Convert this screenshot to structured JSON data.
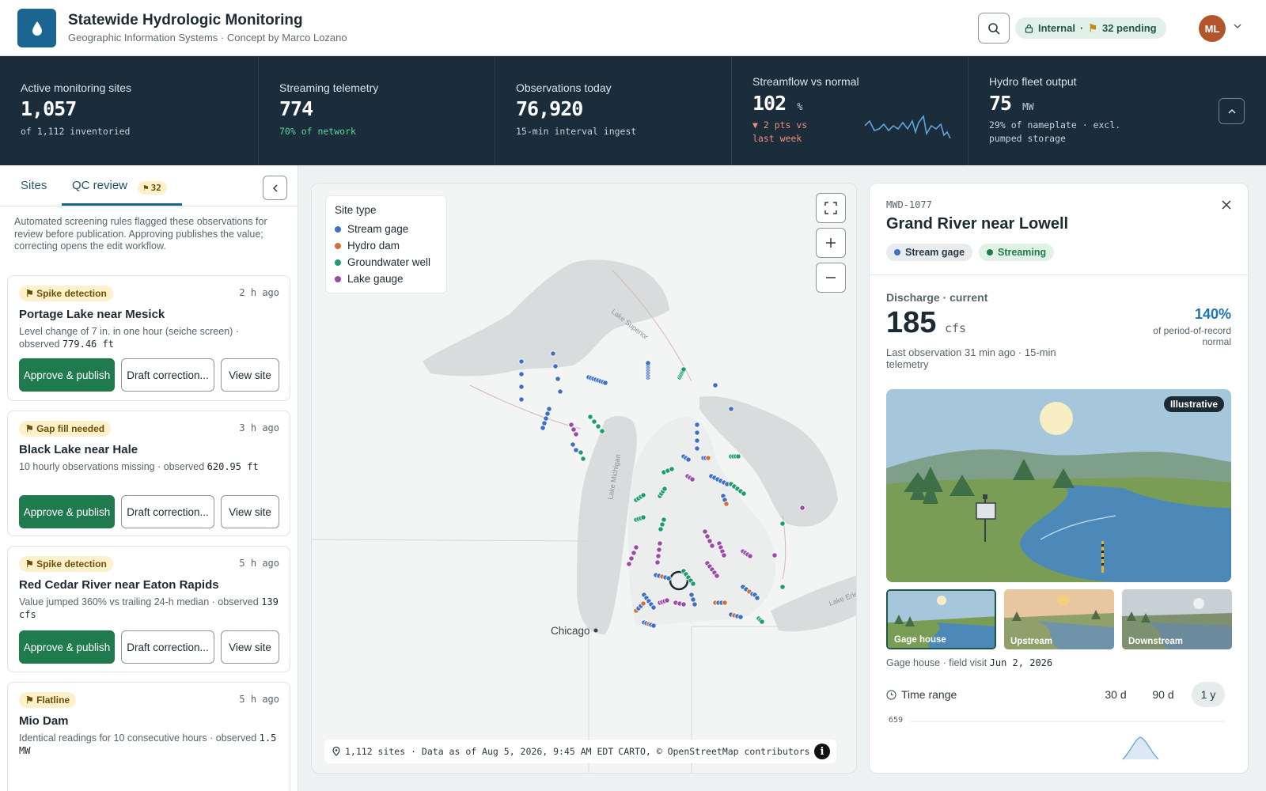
{
  "header": {
    "title": "Statewide Hydrologic Monitoring",
    "subtitle": "Geographic Information Systems · Concept by Marco Lozano",
    "status_env": "Internal",
    "status_pending": "32 pending",
    "avatar_initials": "ML"
  },
  "kpis": {
    "active": {
      "label": "Active monitoring sites",
      "value": "1,057",
      "note": "of 1,112 inventoried"
    },
    "streaming": {
      "label": "Streaming telemetry",
      "value": "774",
      "note": "70% of network"
    },
    "observations": {
      "label": "Observations today",
      "value": "76,920",
      "note": "15-min interval ingest"
    },
    "streamflow": {
      "label": "Streamflow vs normal",
      "value": "102",
      "unit": "%",
      "note1": "▼ 2 pts vs",
      "note2": "last week"
    },
    "hydro": {
      "label": "Hydro fleet output",
      "value": "75",
      "unit": "MW",
      "note1": "29% of nameplate · excl.",
      "note2": "pumped storage"
    }
  },
  "left": {
    "tab_sites": "Sites",
    "tab_qc": "QC review",
    "qc_count": "32",
    "intro": "Automated screening rules flagged these observations for review before publication. Approving publishes the value; correcting opens the edit workflow.",
    "approve_label": "Approve & publish",
    "draft_label": "Draft correction...",
    "view_label": "View site",
    "cards": [
      {
        "flag": "Spike detection",
        "time": "2 h ago",
        "title": "Portage Lake near Mesick",
        "desc": "Level change of 7 in. in one hour (seiche screen) · observed",
        "value": "779.46 ft"
      },
      {
        "flag": "Gap fill needed",
        "time": "3 h ago",
        "title": "Black Lake near Hale",
        "desc": "10 hourly observations missing · observed",
        "value": "620.95 ft"
      },
      {
        "flag": "Spike detection",
        "time": "5 h ago",
        "title": "Red Cedar River near Eaton Rapids",
        "desc": "Value jumped 360% vs trailing 24-h median · observed",
        "value": "139 cfs"
      },
      {
        "flag": "Flatline",
        "time": "5 h ago",
        "title": "Mio Dam",
        "desc": "Identical readings for 10 consecutive hours · observed",
        "value": "1.5 MW"
      }
    ]
  },
  "map": {
    "legend_title": "Site type",
    "legend": [
      {
        "label": "Stream gage",
        "color": "#3d6fc4"
      },
      {
        "label": "Hydro dam",
        "color": "#d2703a"
      },
      {
        "label": "Groundwater well",
        "color": "#1f9b72"
      },
      {
        "label": "Lake gauge",
        "color": "#9c4aa8"
      }
    ],
    "lake_superior": "Lake Superior",
    "lake_michigan": "Lake Michigan",
    "lake_erie": "Lake Erie",
    "city": "Chicago",
    "footer": "1,112 sites · Data as of Aug 5, 2026, 9:45 AM EDT",
    "attribution": "CARTO, © OpenStreetMap contributors"
  },
  "detail": {
    "site_id": "MWD-1077",
    "name": "Grand River near Lowell",
    "chip_type": "Stream gage",
    "chip_status": "Streaming",
    "discharge_label": "Discharge · current",
    "discharge_value": "185",
    "discharge_unit": "cfs",
    "last_obs": "Last observation 31 min ago · 15-min telemetry",
    "pct": "140%",
    "pct_note": "of period-of-record normal",
    "illus_badge": "Illustrative",
    "thumbs": [
      "Gage house",
      "Upstream",
      "Downstream"
    ],
    "caption_prefix": "Gage house · field visit",
    "caption_date": "Jun 2, 2026",
    "range_label": "Time range",
    "ranges": [
      "30 d",
      "90 d",
      "1 y"
    ],
    "chart_top": "659"
  }
}
